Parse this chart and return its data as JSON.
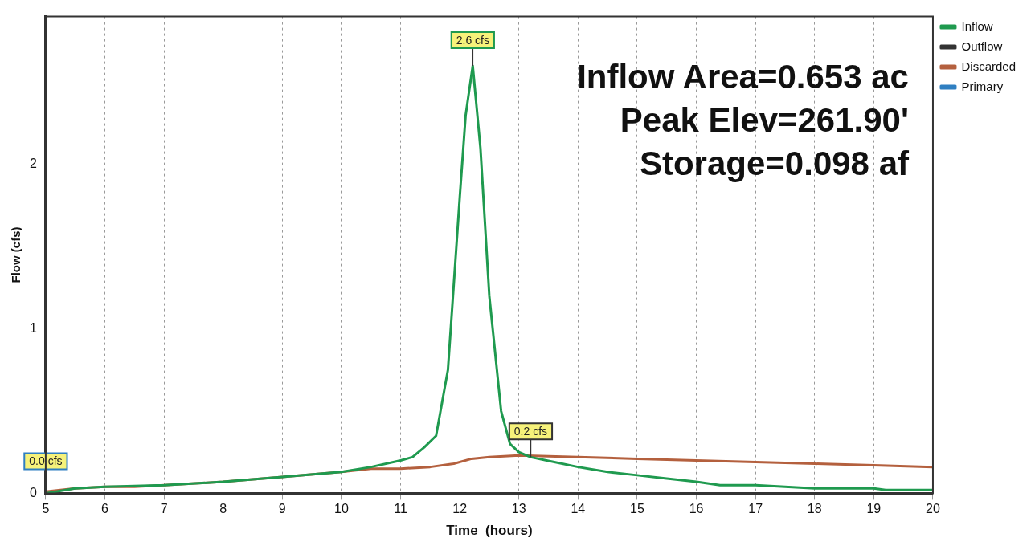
{
  "chart_data": {
    "type": "line",
    "xlabel": "Time  (hours)",
    "ylabel": "Flow (cfs)",
    "xlim": [
      5,
      20
    ],
    "xticks": [
      5,
      6,
      7,
      8,
      9,
      10,
      11,
      12,
      13,
      14,
      15,
      16,
      17,
      18,
      19,
      20
    ],
    "ylim": [
      0,
      2.9
    ],
    "yticks": [
      0,
      1,
      2
    ],
    "grid": "x",
    "legend": "right",
    "marker": "none",
    "line_style": "solid",
    "series": [
      {
        "name": "Inflow",
        "color": "#1f9a4f",
        "x": [
          5,
          5.5,
          6,
          7,
          8,
          9,
          10,
          10.5,
          11,
          11.2,
          11.4,
          11.6,
          11.8,
          12.0,
          12.1,
          12.22,
          12.35,
          12.5,
          12.7,
          12.85,
          13,
          13.2,
          13.6,
          14,
          14.5,
          15,
          15.5,
          16,
          16.4,
          17,
          17.5,
          18,
          19,
          19.2,
          20
        ],
        "values": [
          0.0,
          0.03,
          0.04,
          0.05,
          0.07,
          0.1,
          0.13,
          0.16,
          0.2,
          0.22,
          0.28,
          0.35,
          0.75,
          1.8,
          2.3,
          2.6,
          2.1,
          1.2,
          0.5,
          0.3,
          0.25,
          0.22,
          0.19,
          0.16,
          0.13,
          0.11,
          0.09,
          0.07,
          0.05,
          0.05,
          0.04,
          0.03,
          0.03,
          0.02,
          0.02
        ]
      },
      {
        "name": "Outflow",
        "color": "#333333",
        "values": [
          null,
          null,
          null,
          null,
          null,
          null,
          null,
          null,
          null,
          null,
          null,
          null,
          null,
          null,
          null,
          null,
          null,
          null,
          null,
          null,
          null
        ]
      },
      {
        "name": "Discarded",
        "color": "#b4603e",
        "x": [
          5,
          5.5,
          6,
          6.5,
          7,
          8,
          9,
          10,
          10.5,
          11,
          11.5,
          11.9,
          12.2,
          12.5,
          13,
          14,
          15,
          16,
          17,
          18,
          19,
          20
        ],
        "values": [
          0.01,
          0.03,
          0.04,
          0.04,
          0.05,
          0.07,
          0.1,
          0.13,
          0.15,
          0.15,
          0.16,
          0.18,
          0.21,
          0.22,
          0.23,
          0.22,
          0.21,
          0.2,
          0.19,
          0.18,
          0.17,
          0.16
        ]
      },
      {
        "name": "Primary",
        "color": "#2f7fc1",
        "values": [
          null,
          null,
          null,
          null,
          null,
          null,
          null,
          null,
          null,
          null,
          null,
          null,
          null,
          null,
          null,
          null,
          null,
          null,
          null,
          null,
          null
        ]
      }
    ],
    "annotations": [
      {
        "text": "2.6 cfs",
        "x": 12.22,
        "y": 2.6
      },
      {
        "text": "0.2 cfs",
        "x": 13.2,
        "y": 0.22
      },
      {
        "text": "0.0 cfs",
        "x": 5,
        "y": 0.0
      },
      "Inflow Area=0.653 ac",
      "Peak Elev=261.90'",
      "Storage=0.098 af"
    ]
  }
}
